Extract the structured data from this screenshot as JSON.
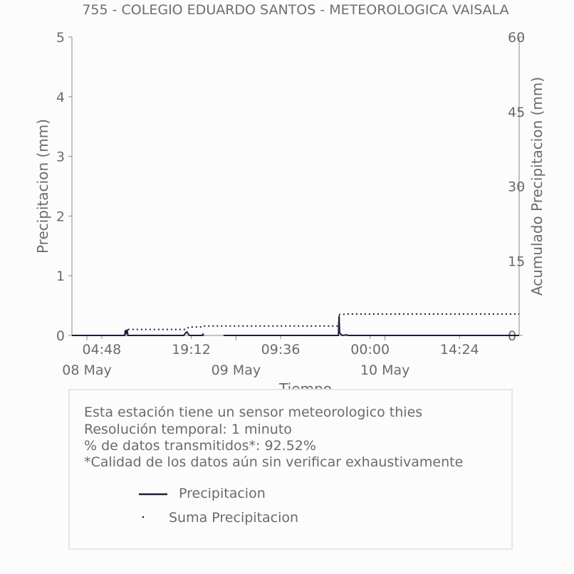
{
  "chart_data": {
    "type": "line",
    "title": "755 - COLEGIO EDUARDO SANTOS - METEOROLOGICA VAISALA",
    "xlabel": "Tiempo",
    "ylabel": "Precipitacion (mm)",
    "y2label": "Acumulado Precipitacion (mm)",
    "ylim": [
      0,
      5
    ],
    "y2lim": [
      0,
      60
    ],
    "yticks": [
      "0",
      "1",
      "2",
      "3",
      "4",
      "5"
    ],
    "y2ticks": [
      "0",
      "15",
      "30",
      "45",
      "60"
    ],
    "xlim_hours": [
      0,
      72
    ],
    "xticks": [
      {
        "h": 4.8,
        "label": "04:48"
      },
      {
        "h": 19.2,
        "label": "19:12"
      },
      {
        "h": 33.6,
        "label": "09:36"
      },
      {
        "h": 48.0,
        "label": "00:00"
      },
      {
        "h": 62.4,
        "label": "14:24"
      }
    ],
    "date_ticks": [
      {
        "h": 0,
        "label": "08 May"
      },
      {
        "h": 24,
        "label": "09 May"
      },
      {
        "h": 48,
        "label": "10 May"
      }
    ],
    "series": [
      {
        "name": "Precipitacion",
        "style": "solid",
        "color": "#1c1f3a",
        "axis": "left",
        "points": [
          [
            0,
            0
          ],
          [
            8.5,
            0
          ],
          [
            8.6,
            0.09
          ],
          [
            8.7,
            0.02
          ],
          [
            8.8,
            0.07
          ],
          [
            8.9,
            0.1
          ],
          [
            9.0,
            0.0
          ],
          [
            18.0,
            0
          ],
          [
            18.3,
            0.04
          ],
          [
            18.5,
            0.06
          ],
          [
            18.7,
            0.03
          ],
          [
            18.9,
            0
          ],
          [
            21.0,
            0
          ],
          [
            21.1,
            0.02
          ],
          [
            21.2,
            0
          ]
        ],
        "gaps": [
          [
            21.5,
            24.4
          ]
        ],
        "points2": [
          [
            24.4,
            0
          ],
          [
            42.9,
            0
          ],
          [
            43.0,
            0.33
          ],
          [
            43.1,
            0.04
          ],
          [
            43.3,
            0.02
          ],
          [
            43.5,
            0
          ],
          [
            44.2,
            0.01
          ],
          [
            44.4,
            0
          ],
          [
            72,
            0
          ]
        ]
      },
      {
        "name": "Suma Precipitacion",
        "style": "dotted",
        "color": "#1c1f3a",
        "axis": "right",
        "points": [
          [
            0,
            0
          ],
          [
            8.5,
            0
          ],
          [
            8.8,
            0.9
          ],
          [
            9.0,
            1.2
          ],
          [
            18.3,
            1.2
          ],
          [
            18.9,
            1.7
          ],
          [
            21.0,
            1.7
          ],
          [
            21.2,
            1.9
          ],
          [
            42.9,
            1.9
          ],
          [
            43.1,
            4.2
          ],
          [
            44.4,
            4.3
          ],
          [
            72,
            4.3
          ]
        ]
      }
    ],
    "legend_position": "bottom"
  },
  "info": {
    "lines": [
      "Esta estación tiene un sensor meteorologico thies",
      "Resolución temporal: 1 minuto",
      "% de datos transmitidos*: 92.52%",
      "*Calidad de los datos aún sin verificar exhaustivamente"
    ],
    "legend": [
      {
        "label": "Precipitacion",
        "symbol": "line"
      },
      {
        "label": "Suma Precipitacion",
        "symbol": "dot"
      }
    ]
  },
  "colors": {
    "series": "#1c1f3a",
    "axis": "#8a8a8a",
    "text": "#6b6b6b",
    "box_border": "#e6e6e6"
  }
}
